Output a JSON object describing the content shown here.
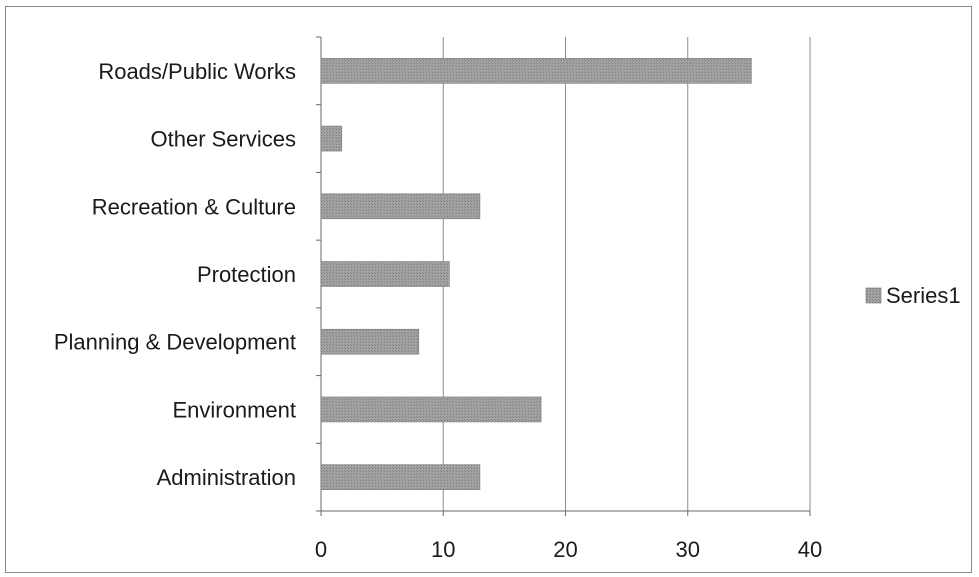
{
  "chart_data": {
    "type": "bar",
    "orientation": "horizontal",
    "categories": [
      "Administration",
      "Environment",
      "Planning & Development",
      "Protection",
      "Recreation & Culture",
      "Other Services",
      "Roads/Public Works"
    ],
    "series": [
      {
        "name": "Series1",
        "values": [
          13,
          18,
          8,
          10.5,
          13,
          1.7,
          35.2
        ]
      }
    ],
    "xlim": [
      0,
      40
    ],
    "xticks": [
      0,
      10,
      20,
      30,
      40
    ],
    "grid": true,
    "legend": "right",
    "bar_color": "#9a9a9a"
  }
}
